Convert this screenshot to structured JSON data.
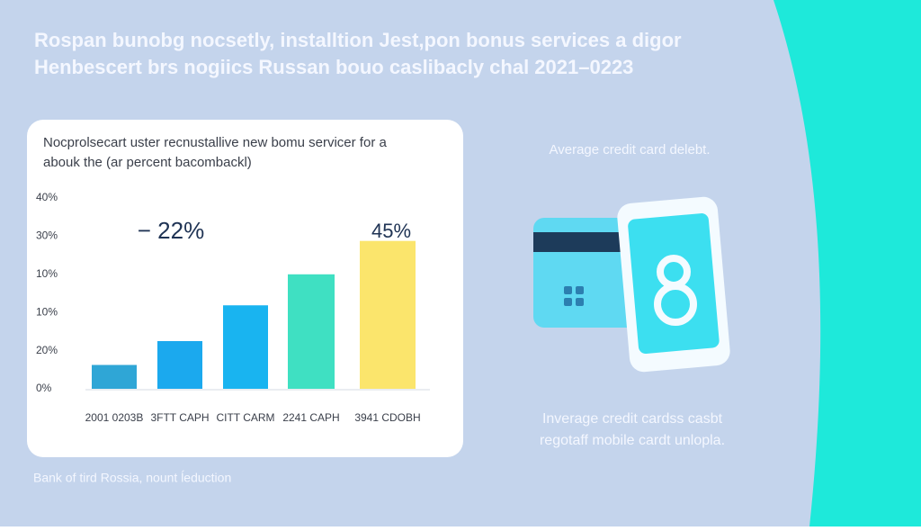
{
  "header": {
    "lines": [
      "Rospan bunobg nocsetly, installtion Jest,pon bonus services a digor",
      "Henbescert brs nogiics Russan bouo caslibacly chal 2021–0223"
    ]
  },
  "chart_data": {
    "type": "bar",
    "title_lines": [
      "Nocprolsecart uster recnustallive new bomu servicer for a",
      "abouk the (ar percent bacombackl)"
    ],
    "axis_labels": [
      "40%",
      "30%",
      "10%",
      "10%",
      "20%",
      "0%"
    ],
    "categories": [
      "2001 0203B",
      "3FTT CAPH",
      "CITT CARM",
      "2241 CAPH",
      "3941 CDOBH"
    ],
    "values": [
      5,
      10,
      17.5,
      24,
      31
    ],
    "colors": [
      "#2fa6d6",
      "#1ba9ee",
      "#19b4f0",
      "#3fe0c2",
      "#fbe56c"
    ],
    "ylim": [
      0,
      40
    ],
    "annotations": [
      "− 22%",
      "45%"
    ]
  },
  "source": "Bank of tird Rossia, nount ĺeduction",
  "side": {
    "top": "Average credit card delebt.",
    "bottom": [
      "Inverage credit cardss casbt",
      "regotaff mobile cardt unlopla."
    ]
  }
}
